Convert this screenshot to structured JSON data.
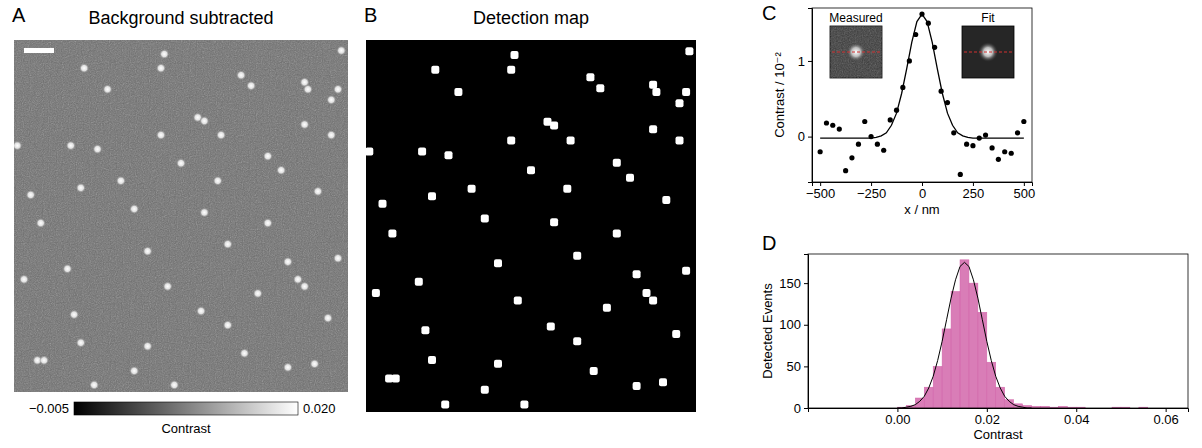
{
  "chart_data": [
    {
      "type": "image",
      "panel": "A",
      "title": "Background subtracted",
      "tick_labels": false,
      "xlim": [
        0,
        1
      ],
      "ylim": [
        0,
        1
      ],
      "spots": {
        "x": [
          0.21,
          0.45,
          0.44,
          0.68,
          0.71,
          0.87,
          0.88,
          0.98,
          0.97,
          0.95,
          0.28,
          0.55,
          0.57,
          0.44,
          0.62,
          0.25,
          0.87,
          0.95,
          0.01,
          0.17,
          0.5,
          0.76,
          0.32,
          0.61,
          0.8,
          0.2,
          0.05,
          0.91,
          0.36,
          0.57,
          0.76,
          0.08,
          0.4,
          0.64,
          0.82,
          0.97,
          0.16,
          0.85,
          0.87,
          0.03,
          0.46,
          0.73,
          0.56,
          0.18,
          0.64,
          0.94,
          0.2,
          0.4,
          0.69,
          0.07,
          0.09,
          0.36,
          0.82,
          0.9,
          0.48,
          0.24
        ],
        "y": [
          0.08,
          0.04,
          0.08,
          0.1,
          0.13,
          0.12,
          0.14,
          0.03,
          0.14,
          0.17,
          0.14,
          0.22,
          0.23,
          0.27,
          0.27,
          0.31,
          0.24,
          0.27,
          0.3,
          0.3,
          0.35,
          0.33,
          0.4,
          0.4,
          0.37,
          0.42,
          0.44,
          0.43,
          0.48,
          0.49,
          0.52,
          0.52,
          0.6,
          0.58,
          0.63,
          0.62,
          0.65,
          0.68,
          0.7,
          0.68,
          0.7,
          0.72,
          0.77,
          0.78,
          0.81,
          0.79,
          0.86,
          0.87,
          0.89,
          0.91,
          0.91,
          0.94,
          0.93,
          0.92,
          0.98,
          0.98
        ]
      },
      "colorbar": {
        "range": [
          -0.005,
          0.02
        ],
        "ticks": [
          {
            "value": -0.005,
            "label": "−0.005"
          },
          {
            "value": 0.02,
            "label": "0.020"
          }
        ],
        "label": "Contrast"
      }
    },
    {
      "type": "image",
      "panel": "B",
      "title": "Detection map",
      "tick_labels": false,
      "xlim": [
        0,
        1
      ],
      "ylim": [
        0,
        1
      ],
      "spots": {
        "x": [
          0.21,
          0.45,
          0.44,
          0.68,
          0.71,
          0.87,
          0.88,
          0.98,
          0.97,
          0.95,
          0.28,
          0.55,
          0.57,
          0.44,
          0.62,
          0.25,
          0.87,
          0.95,
          0.01,
          0.17,
          0.5,
          0.76,
          0.32,
          0.61,
          0.8,
          0.2,
          0.05,
          0.91,
          0.36,
          0.57,
          0.76,
          0.08,
          0.4,
          0.64,
          0.82,
          0.97,
          0.16,
          0.85,
          0.87,
          0.03,
          0.46,
          0.73,
          0.56,
          0.18,
          0.64,
          0.94,
          0.2,
          0.4,
          0.69,
          0.07,
          0.09,
          0.36,
          0.82,
          0.9,
          0.48,
          0.24
        ],
        "y": [
          0.08,
          0.04,
          0.08,
          0.1,
          0.13,
          0.12,
          0.14,
          0.03,
          0.14,
          0.17,
          0.14,
          0.22,
          0.23,
          0.27,
          0.27,
          0.31,
          0.24,
          0.27,
          0.3,
          0.3,
          0.35,
          0.33,
          0.4,
          0.4,
          0.37,
          0.42,
          0.44,
          0.43,
          0.48,
          0.49,
          0.52,
          0.52,
          0.6,
          0.58,
          0.63,
          0.62,
          0.65,
          0.68,
          0.7,
          0.68,
          0.7,
          0.72,
          0.77,
          0.78,
          0.81,
          0.79,
          0.86,
          0.87,
          0.89,
          0.91,
          0.91,
          0.94,
          0.93,
          0.92,
          0.98,
          0.98
        ]
      }
    },
    {
      "type": "line",
      "panel": "C",
      "xlabel": "x / nm",
      "ylabel": "Contrast / 10⁻²",
      "xlim": [
        -540,
        540
      ],
      "ylim": [
        -0.6,
        1.7
      ],
      "xticks": [
        {
          "value": -500,
          "label": "−500"
        },
        {
          "value": -250,
          "label": "−250"
        },
        0,
        250,
        500
      ],
      "yticks": [
        0,
        1
      ],
      "insets": [
        {
          "title": "Measured"
        },
        {
          "title": "Fit"
        }
      ],
      "series": [
        {
          "type": "scatter",
          "marker": "circle",
          "color": "#000000",
          "x": [
            -500,
            -469,
            -438,
            -406,
            -375,
            -344,
            -312,
            -281,
            -250,
            -219,
            -188,
            -156,
            -125,
            -94,
            -62,
            -31,
            0,
            31,
            62,
            94,
            125,
            156,
            188,
            219,
            250,
            281,
            312,
            344,
            375,
            406,
            438,
            469,
            500
          ],
          "values": [
            -0.2,
            0.18,
            0.15,
            0.1,
            -0.45,
            -0.28,
            -0.1,
            0.2,
            0.0,
            -0.1,
            -0.18,
            0.22,
            0.35,
            0.65,
            1.0,
            1.35,
            1.62,
            1.5,
            1.18,
            0.6,
            0.45,
            0.05,
            -0.5,
            -0.1,
            -0.12,
            -0.02,
            0.02,
            -0.15,
            -0.3,
            -0.2,
            -0.22,
            0.05,
            0.2
          ]
        },
        {
          "type": "line",
          "line_style": "solid",
          "color": "#000000",
          "x": [
            -500,
            -475,
            -450,
            -425,
            -400,
            -375,
            -350,
            -325,
            -300,
            -275,
            -250,
            -225,
            -200,
            -175,
            -150,
            -125,
            -100,
            -75,
            -50,
            -25,
            0,
            25,
            50,
            75,
            100,
            125,
            150,
            175,
            200,
            225,
            250,
            275,
            300,
            325,
            350,
            375,
            400,
            425,
            450,
            475,
            500
          ],
          "values": [
            -0.02,
            -0.02,
            -0.02,
            -0.02,
            -0.02,
            -0.02,
            -0.02,
            -0.02,
            -0.02,
            -0.02,
            -0.02,
            -0.01,
            0.01,
            0.05,
            0.15,
            0.31,
            0.57,
            0.9,
            1.25,
            1.52,
            1.62,
            1.52,
            1.25,
            0.9,
            0.57,
            0.31,
            0.15,
            0.05,
            0.01,
            -0.01,
            -0.02,
            -0.02,
            -0.02,
            -0.02,
            -0.02,
            -0.02,
            -0.02,
            -0.02,
            -0.02,
            -0.02,
            -0.02
          ]
        }
      ]
    },
    {
      "type": "histogram",
      "panel": "D",
      "xlabel": "Contrast",
      "ylabel": "Detected Events",
      "color": "#d266aa",
      "xlim": [
        -0.02,
        0.065
      ],
      "ylim": [
        0,
        185
      ],
      "xticks": [
        {
          "value": 0,
          "label": "0.00"
        },
        0.02,
        0.04,
        0.06
      ],
      "yticks": [
        0,
        50,
        100,
        150
      ],
      "bins": [
        0,
        0.002,
        0.004,
        0.006,
        0.008,
        0.01,
        0.012,
        0.014,
        0.016,
        0.018,
        0.02,
        0.022,
        0.024,
        0.026,
        0.028,
        0.03,
        0.032,
        0.034,
        0.036,
        0.038,
        0.04,
        0.042,
        0.044,
        0.046,
        0.048,
        0.05,
        0.052,
        0.054,
        0.056
      ],
      "counts": [
        1,
        3,
        12,
        25,
        50,
        95,
        140,
        178,
        150,
        115,
        55,
        25,
        10,
        5,
        3,
        2,
        2,
        1,
        2,
        1,
        1,
        0,
        0,
        0,
        1,
        1,
        0,
        1
      ],
      "series": [
        {
          "type": "line",
          "line_style": "solid",
          "color": "#000000",
          "x": [
            0,
            0.001,
            0.002,
            0.003,
            0.004,
            0.005,
            0.006,
            0.007,
            0.008,
            0.009,
            0.01,
            0.011,
            0.012,
            0.013,
            0.014,
            0.015,
            0.016,
            0.017,
            0.018,
            0.019,
            0.02,
            0.021,
            0.022,
            0.023,
            0.024,
            0.025,
            0.026,
            0.027,
            0.028,
            0.029,
            0.03
          ],
          "values": [
            0,
            0,
            1,
            2,
            4,
            8,
            14,
            24,
            38,
            57,
            80,
            106,
            132,
            154,
            170,
            175,
            170,
            154,
            132,
            106,
            80,
            57,
            38,
            24,
            14,
            8,
            4,
            2,
            1,
            0,
            0
          ]
        }
      ]
    }
  ]
}
